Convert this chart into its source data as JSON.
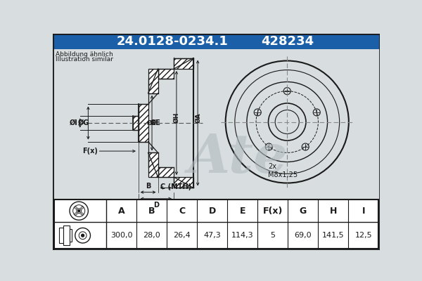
{
  "title1": "24.0128-0234.1",
  "title2": "428234",
  "subtitle1": "Abbildung ähnlich",
  "subtitle2": "Illustration similar",
  "table_headers": [
    "A",
    "B",
    "C",
    "D",
    "E",
    "F(x)",
    "G",
    "H",
    "I"
  ],
  "table_values": [
    "300,0",
    "28,0",
    "26,4",
    "47,3",
    "114,3",
    "5",
    "69,0",
    "141,5",
    "12,5"
  ],
  "bolt_label": "2x\nM8x1,25",
  "title_bg": "#1a5fa8",
  "title_fg": "#ffffff",
  "drawing_bg": "#d8dde0",
  "line_color": "#1a1a1a",
  "table_bg": "#ffffff",
  "watermark_color": "#b0bac0"
}
